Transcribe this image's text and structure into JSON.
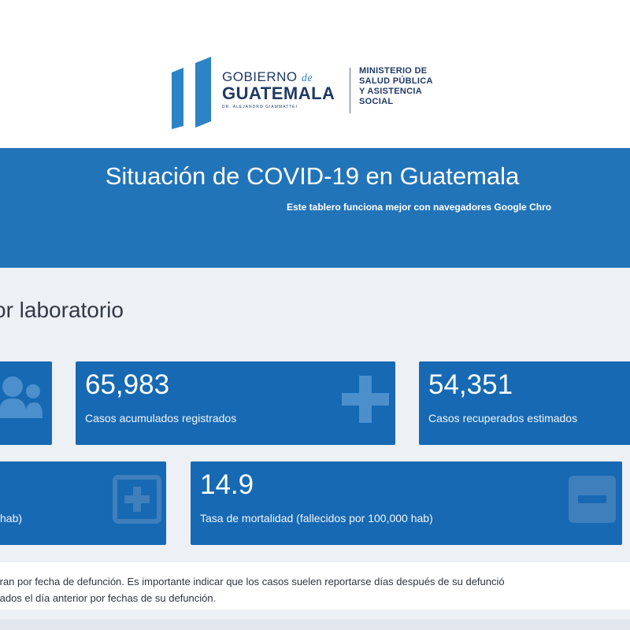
{
  "header": {
    "logo_line1": "GOBIERNO",
    "logo_de": "de",
    "logo_line2": "GUATEMALA",
    "logo_line3": "DR. ALEJANDRO GIAMMATTEI",
    "ministry": [
      "MINISTERIO DE",
      "SALUD PÚBLICA",
      "Y ASISTENCIA",
      "SOCIAL"
    ]
  },
  "banner": {
    "title": "Situación de COVID-19 en Guatemala",
    "subtitle": "Este tablero funciona mejor con navegadores Google Chro"
  },
  "section": {
    "title": "or laboratorio"
  },
  "cards": {
    "accumulated": {
      "value": "65,983",
      "label": "Casos acumulados registrados",
      "icon": "plus-icon"
    },
    "recovered": {
      "value": "54,351",
      "label": "Casos recuperados estimados"
    },
    "partial_left": {
      "label": "hab)",
      "icon": "plus-box-icon"
    },
    "mortality": {
      "value": "14.9",
      "label": "Tasa de mortalidad (fallecidos por 100,000 hab)",
      "icon": "minus-box-icon"
    },
    "people": {
      "icon": "people-icon"
    }
  },
  "note": {
    "line1": "tran por fecha de defunción. Es importante indicar que los casos suelen reportarse días después de su defunció",
    "line2": "tados el día anterior por fechas de su defunción."
  },
  "colors": {
    "banner": "#2274b9",
    "card": "#1769b3",
    "panel": "#edf0f5",
    "brand_dark": "#1f3a64"
  }
}
